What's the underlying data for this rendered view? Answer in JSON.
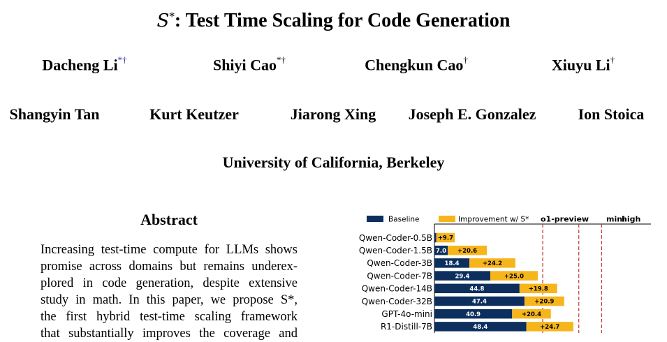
{
  "paper": {
    "title_symbol": "S",
    "title_symbol_sup": "*",
    "title_rest": ": Test Time Scaling for Code Generation",
    "authors_row1": [
      {
        "name": "Dacheng Li",
        "mark": "*†",
        "mark_color": "#2b2bb8"
      },
      {
        "name": "Shiyi Cao",
        "mark": "*†"
      },
      {
        "name": "Chengkun Cao",
        "mark": "†"
      },
      {
        "name": "Xiuyu Li",
        "mark": "†"
      }
    ],
    "authors_row2": [
      {
        "name": "Shangyin Tan"
      },
      {
        "name": "Kurt Keutzer"
      },
      {
        "name": "Jiarong Xing"
      },
      {
        "name": "Joseph E. Gonzalez"
      },
      {
        "name": "Ion Stoica"
      }
    ],
    "affiliation": "University of California, Berkeley",
    "abstract_heading": "Abstract",
    "abstract_lines": [
      "Increasing test-time compute for LLMs shows",
      "promise across domains but remains underex-",
      "plored in code generation, despite extensive",
      "study in math. In this paper, we propose S*,",
      "the first hybrid test-time scaling framework",
      "that substantially improves the coverage and"
    ]
  },
  "chart_data": {
    "type": "bar",
    "orientation": "horizontal",
    "stacked": true,
    "categories": [
      "Qwen-Coder-0.5B",
      "Qwen-Coder-1.5B",
      "Qwen-Coder-3B",
      "Qwen-Coder-7B",
      "Qwen-Coder-14B",
      "Qwen-Coder-32B",
      "GPT-4o-mini",
      "R1-Distill-7B"
    ],
    "series": [
      {
        "name": "Baseline",
        "color": "#0d2f5e",
        "values": [
          1.0,
          7.0,
          18.4,
          29.4,
          44.8,
          47.4,
          40.9,
          48.4
        ]
      },
      {
        "name": "Improvement w/ S*",
        "color": "#f7b51c",
        "values": [
          9.7,
          20.6,
          24.2,
          25.0,
          19.8,
          20.9,
          20.4,
          24.7
        ]
      }
    ],
    "data_labels": {
      "baseline": [
        "",
        "7.0",
        "18.4",
        "29.4",
        "44.8",
        "47.4",
        "40.9",
        "48.4"
      ],
      "improvement": [
        "+9.7",
        "+20.6",
        "+24.2",
        "+25.0",
        "+19.8",
        "+20.9",
        "+20.4",
        "+24.7"
      ]
    },
    "reference_lines": [
      {
        "label": "o1-preview",
        "value": 57
      },
      {
        "label": "mini",
        "value": 76
      },
      {
        "label": "high",
        "value": 88
      }
    ],
    "reference_line_color": "#c0392b",
    "legend_placement": "top",
    "xlim": [
      0,
      100
    ]
  }
}
